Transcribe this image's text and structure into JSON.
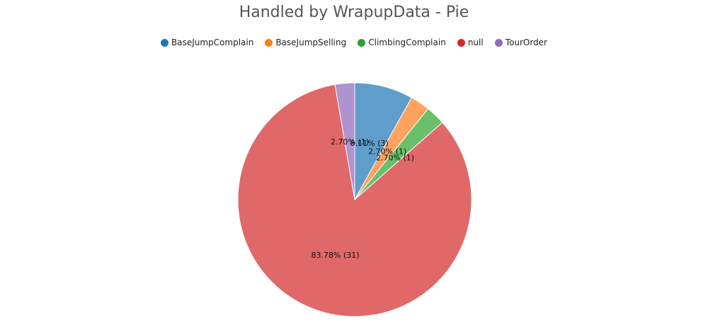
{
  "chart_data": {
    "type": "pie",
    "title": "Handled by WrapupData - Pie",
    "legend_position": "top",
    "slices": [
      {
        "name": "BaseJumpComplain",
        "value": 3,
        "percent": 8.11,
        "label": "8.11% (3)",
        "color": "#5f9ecb",
        "legend_color": "#1f77b4"
      },
      {
        "name": "BaseJumpSelling",
        "value": 1,
        "percent": 2.7,
        "label": "2.70% (1)",
        "color": "#fea25e",
        "legend_color": "#ff7f0e"
      },
      {
        "name": "ClimbingComplain",
        "value": 1,
        "percent": 2.7,
        "label": "2.70% (1)",
        "color": "#6abf6a",
        "legend_color": "#2ca02c"
      },
      {
        "name": "null",
        "value": 31,
        "percent": 83.78,
        "label": "83.78% (31)",
        "color": "#e06868",
        "legend_color": "#d62728"
      },
      {
        "name": "TourOrder",
        "value": 1,
        "percent": 2.7,
        "label": "2.70% (1)",
        "color": "#b093cf",
        "legend_color": "#9467bd"
      }
    ]
  }
}
